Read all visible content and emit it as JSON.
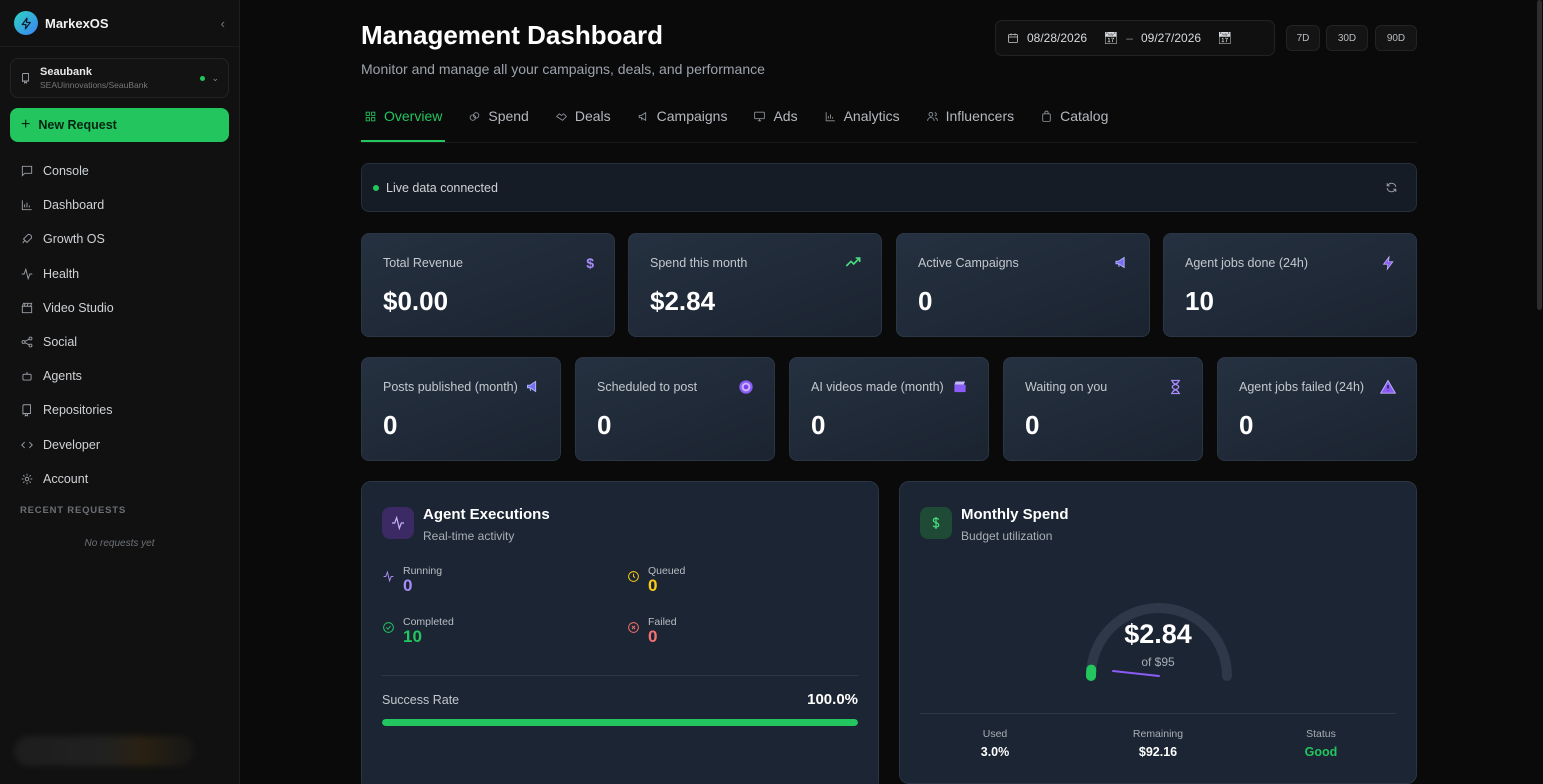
{
  "app": {
    "name": "MarkexOS",
    "workspace": {
      "name": "Seaubank",
      "path": "SEAUinnovations/SeauBank"
    },
    "new_request_label": "New Request",
    "nav": [
      {
        "label": "Console",
        "icon": "chat-icon"
      },
      {
        "label": "Dashboard",
        "icon": "bar-chart-icon"
      },
      {
        "label": "Growth OS",
        "icon": "rocket-icon"
      },
      {
        "label": "Health",
        "icon": "pulse-icon"
      },
      {
        "label": "Video Studio",
        "icon": "clapper-icon"
      },
      {
        "label": "Social",
        "icon": "share-icon"
      },
      {
        "label": "Agents",
        "icon": "robot-icon"
      },
      {
        "label": "Repositories",
        "icon": "repo-icon"
      },
      {
        "label": "Developer",
        "icon": "code-icon"
      },
      {
        "label": "Account",
        "icon": "gear-icon"
      }
    ],
    "recent_title": "RECENT REQUESTS",
    "recent_empty": "No requests yet"
  },
  "header": {
    "title": "Management Dashboard",
    "subtitle": "Monitor and manage all your campaigns, deals, and performance",
    "date_from": "08/28/2026",
    "date_sep": "–",
    "date_to": "09/27/2026",
    "ranges": [
      "7D",
      "30D",
      "90D"
    ]
  },
  "tabs": [
    {
      "label": "Overview",
      "active": true
    },
    {
      "label": "Spend"
    },
    {
      "label": "Deals"
    },
    {
      "label": "Campaigns"
    },
    {
      "label": "Ads"
    },
    {
      "label": "Analytics"
    },
    {
      "label": "Influencers"
    },
    {
      "label": "Catalog"
    }
  ],
  "live_status": "Live data connected",
  "kpis_top": [
    {
      "label": "Total Revenue",
      "value": "$0.00",
      "icon": "dollar-icon"
    },
    {
      "label": "Spend this month",
      "value": "$2.84",
      "icon": "trend-up-icon"
    },
    {
      "label": "Active Campaigns",
      "value": "0",
      "icon": "megaphone-icon"
    },
    {
      "label": "Agent jobs done (24h)",
      "value": "10",
      "icon": "bolt-icon"
    }
  ],
  "kpis_bottom": [
    {
      "label": "Posts published (month)",
      "value": "0",
      "icon": "megaphone-icon"
    },
    {
      "label": "Scheduled to post",
      "value": "0",
      "icon": "target-icon"
    },
    {
      "label": "AI videos made (month)",
      "value": "0",
      "icon": "clapper-icon"
    },
    {
      "label": "Waiting on you",
      "value": "0",
      "icon": "hourglass-icon"
    },
    {
      "label": "Agent jobs failed (24h)",
      "value": "0",
      "icon": "warning-icon"
    }
  ],
  "agent_exec": {
    "title": "Agent Executions",
    "subtitle": "Real-time activity",
    "stats": [
      {
        "label": "Running",
        "value": "0",
        "color": "#a78bfa"
      },
      {
        "label": "Queued",
        "value": "0",
        "color": "#facc15"
      },
      {
        "label": "Completed",
        "value": "10",
        "color": "#22c55e"
      },
      {
        "label": "Failed",
        "value": "0",
        "color": "#f87171"
      }
    ],
    "success_label": "Success Rate",
    "success_value": "100.0%",
    "success_fraction": 1.0
  },
  "monthly_spend": {
    "title": "Monthly Spend",
    "subtitle": "Budget utilization",
    "amount": "$2.84",
    "of": "of $95",
    "used_fraction": 0.03,
    "used_label": "Used",
    "used_value": "3.0%",
    "remaining_label": "Remaining",
    "remaining_value": "$92.16",
    "status_label": "Status",
    "status_value": "Good",
    "status_color": "#22c55e"
  }
}
